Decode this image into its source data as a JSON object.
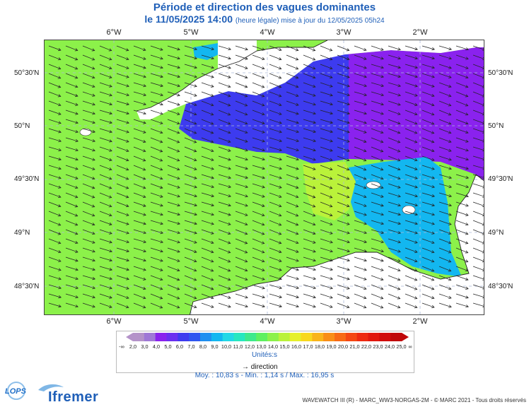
{
  "header": {
    "title": "Période et direction des vagues dominantes",
    "date": "le 11/05/2025 14:00",
    "subtitle": "(heure légale) mise à jour du 12/05/2025 05h24"
  },
  "map": {
    "lon_labels": [
      "6°W",
      "5°W",
      "4°W",
      "3°W",
      "2°W"
    ],
    "lat_labels": [
      "50°30'N",
      "50°N",
      "49°30'N",
      "49°N",
      "48°30'N"
    ]
  },
  "legend": {
    "min_label": "-∞",
    "max_label": "∞",
    "tick_labels": [
      "2,0",
      "3,0",
      "4,0",
      "5,0",
      "6,0",
      "7,0",
      "8,0",
      "9,0",
      "10,0",
      "11,0",
      "12,0",
      "13,0",
      "14,0",
      "15,0",
      "16,0",
      "17,0",
      "18,0",
      "19,0",
      "20,0",
      "21,0",
      "22,0",
      "23,0",
      "24,0",
      "25,0"
    ],
    "colors": [
      "#b493c9",
      "#9f78d6",
      "#8a22ee",
      "#6a2ff0",
      "#3d3bef",
      "#2f56f0",
      "#1f8ff0",
      "#13b7f0",
      "#22d8e6",
      "#27e7c0",
      "#3ee98c",
      "#5ef060",
      "#8cf14a",
      "#baf23a",
      "#e6f02a",
      "#f8d81e",
      "#f9b41a",
      "#f98e16",
      "#f86a14",
      "#f54712",
      "#ee2a10",
      "#e1180e",
      "#d10d0c",
      "#c0080a"
    ],
    "units": "Unités:s",
    "direction_label": "direction",
    "stats": "Moy. : 10,83 s   -   Min. : 1,14 s / Max. : 16,95 s"
  },
  "credit": "WAVEWATCH III (R) - MARC_WW3-NORGAS-2M - © MARC 2021 - Tous droits réservés",
  "logos": {
    "lops": "LOPS",
    "ifremer": "Ifremer"
  }
}
